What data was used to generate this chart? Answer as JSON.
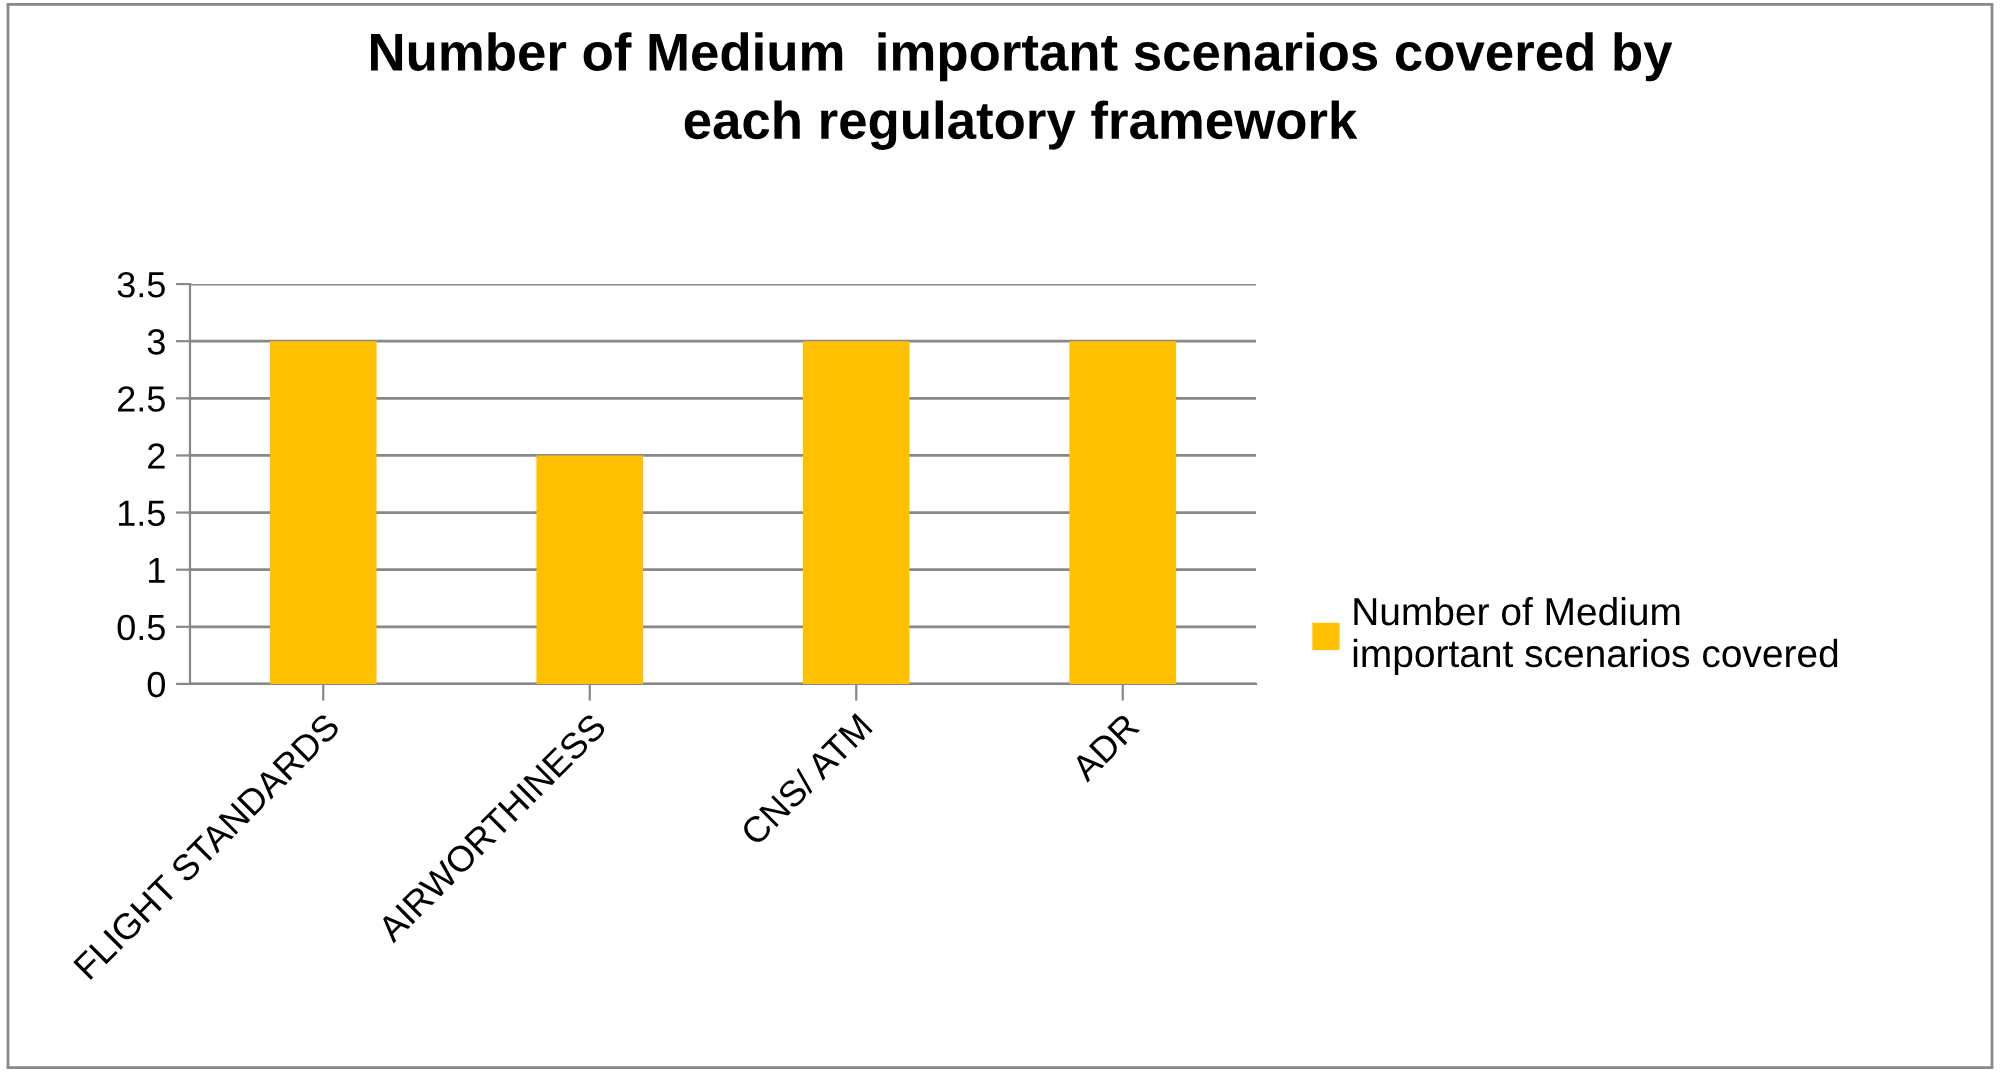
{
  "chart_data": {
    "type": "bar",
    "title": "Number of Medium  important scenarios covered by\neach regulatory framework",
    "categories": [
      "FLIGHT STANDARDS",
      "AIRWORTHINESS",
      "CNS/ ATM",
      "ADR"
    ],
    "series": [
      {
        "name": "Number of Medium\nimportant scenarios covered",
        "color": "#ffc000",
        "values": [
          3,
          2,
          3,
          3
        ]
      }
    ],
    "ylim": [
      0,
      3.5
    ],
    "yticks": [
      0,
      0.5,
      1,
      1.5,
      2,
      2.5,
      3,
      3.5
    ],
    "grid": "y",
    "legend": "right"
  }
}
